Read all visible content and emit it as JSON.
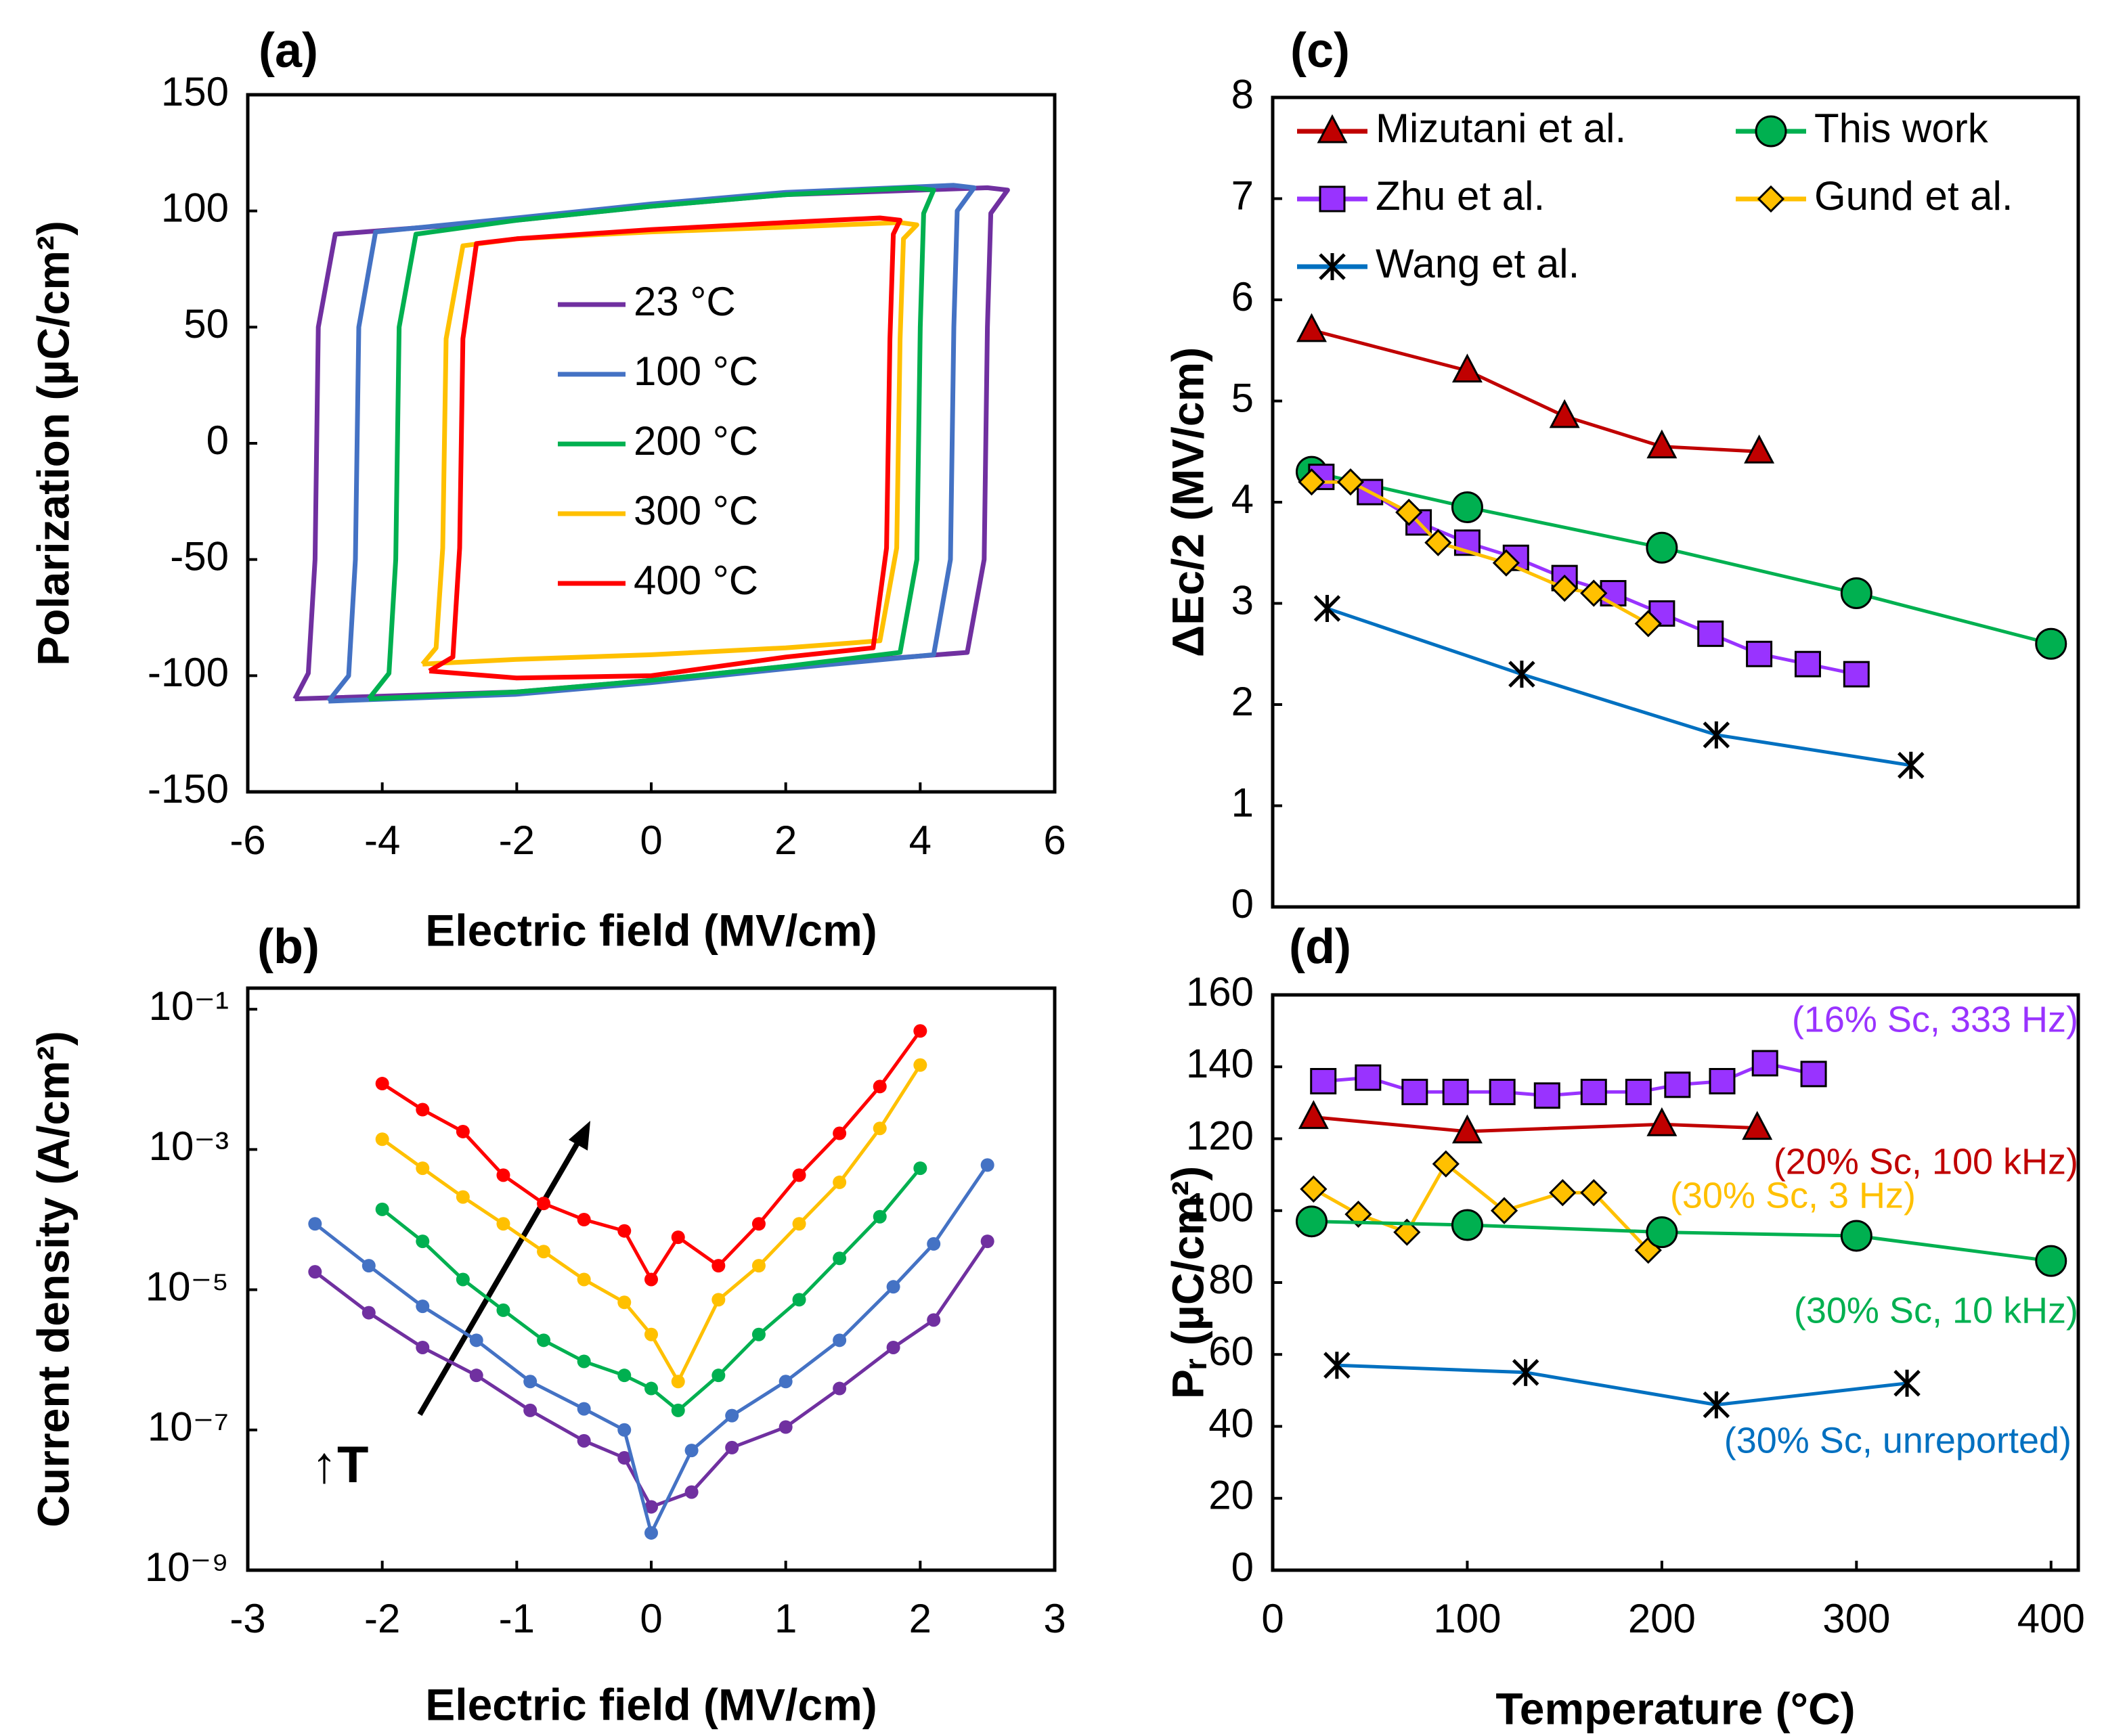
{
  "chart_data": [
    {
      "type": "line",
      "title": "(a)",
      "xlabel": "Electric field (MV/cm)",
      "ylabel": "Polarization (µC/cm²)",
      "xlim": [
        -6,
        6
      ],
      "xticks": [
        -6,
        -4,
        -2,
        0,
        2,
        4,
        6
      ],
      "ylim": [
        -150,
        150
      ],
      "yticks": [
        -150,
        -100,
        -50,
        0,
        50,
        100,
        150
      ],
      "series": [
        {
          "name": "23 °C",
          "color": "#7030a0",
          "x": [
            -5.3,
            -5.1,
            -5.0,
            -4.95,
            -4.7,
            -2,
            0,
            2,
            5.0,
            5.3,
            5.05,
            5.0,
            4.95,
            4.7,
            2,
            0,
            -2,
            -5.3
          ],
          "values": [
            -110,
            -99,
            -50,
            50,
            90,
            96,
            102,
            107,
            110,
            109,
            99,
            50,
            -50,
            -90,
            -96,
            -102,
            -107,
            -110
          ]
        },
        {
          "name": "100 °C",
          "color": "#4472c4",
          "x": [
            -4.8,
            -4.5,
            -4.4,
            -4.35,
            -4.1,
            -2,
            0,
            2,
            4.5,
            4.8,
            4.55,
            4.5,
            4.45,
            4.2,
            2,
            0,
            -2,
            -4.8
          ],
          "values": [
            -111,
            -100,
            -50,
            50,
            91,
            97,
            103,
            108,
            111,
            110,
            100,
            50,
            -50,
            -91,
            -97,
            -103,
            -108,
            -111
          ]
        },
        {
          "name": "200 °C",
          "color": "#00b050",
          "x": [
            -4.2,
            -3.9,
            -3.8,
            -3.75,
            -3.5,
            -2,
            0,
            2,
            3.9,
            4.2,
            4.05,
            4.0,
            3.95,
            3.7,
            2,
            0,
            -2,
            -4.2
          ],
          "values": [
            -110,
            -99,
            -50,
            50,
            90,
            96,
            102,
            107,
            110,
            109,
            99,
            50,
            -50,
            -90,
            -96,
            -102,
            -107,
            -110
          ]
        },
        {
          "name": "300 °C",
          "color": "#ffc000",
          "x": [
            -3.4,
            -3.2,
            -3.1,
            -3.05,
            -2.8,
            -2,
            0,
            2,
            3.7,
            3.95,
            3.75,
            3.7,
            3.65,
            3.4,
            2,
            0,
            -2,
            -3.4
          ],
          "values": [
            -95,
            -88,
            -45,
            45,
            85,
            88,
            91,
            93,
            95,
            94,
            88,
            45,
            -45,
            -85,
            -88,
            -91,
            -93,
            -95
          ]
        },
        {
          "name": "400 °C",
          "color": "#ff0000",
          "x": [
            -3.3,
            -2.95,
            -2.85,
            -2.8,
            -2.6,
            -2,
            0,
            2,
            3.4,
            3.7,
            3.6,
            3.55,
            3.5,
            3.3,
            2,
            0,
            -2,
            -3.3
          ],
          "values": [
            -98,
            -92,
            -45,
            45,
            86,
            88,
            92,
            95,
            97,
            96,
            90,
            45,
            -45,
            -88,
            -92,
            -100,
            -101,
            -98
          ]
        }
      ]
    },
    {
      "type": "line",
      "title": "(b)",
      "xlabel": "Electric field (MV/cm)",
      "ylabel": "Current density (A/cm²)",
      "log_y": true,
      "xlim": [
        -3,
        3
      ],
      "xticks": [
        -3,
        -2,
        -1,
        0,
        1,
        2,
        3
      ],
      "ylim": [
        1e-09,
        0.2
      ],
      "yticks": [
        {
          "value": 1e-09,
          "label": "10⁻⁹"
        },
        {
          "value": 1e-07,
          "label": "10⁻⁷"
        },
        {
          "value": 1e-05,
          "label": "10⁻⁵"
        },
        {
          "value": 0.001,
          "label": "10⁻³"
        },
        {
          "value": 0.1,
          "label": "10⁻¹"
        }
      ],
      "annotations": [
        {
          "text": "↑T"
        }
      ],
      "series": [
        {
          "color": "#7030a0",
          "marker": "dot",
          "x": [
            -2.5,
            -2.1,
            -1.7,
            -1.3,
            -0.9,
            -0.5,
            -0.2,
            0,
            0.3,
            0.6,
            1.0,
            1.4,
            1.8,
            2.1,
            2.5
          ],
          "values": [
            1.8e-05,
            4.7e-06,
            1.5e-06,
            6e-07,
            1.9e-07,
            7e-08,
            4e-08,
            8e-09,
            1.3e-08,
            5.6e-08,
            1.1e-07,
            3.9e-07,
            1.5e-06,
            3.7e-06,
            4.9e-05
          ]
        },
        {
          "color": "#4472c4",
          "marker": "dot",
          "x": [
            -2.5,
            -2.1,
            -1.7,
            -1.3,
            -0.9,
            -0.5,
            -0.2,
            0,
            0.3,
            0.6,
            1.0,
            1.4,
            1.8,
            2.1,
            2.5
          ],
          "values": [
            8.7e-05,
            2.2e-05,
            5.8e-06,
            1.9e-06,
            4.9e-07,
            2e-07,
            1e-07,
            3.4e-09,
            5.1e-08,
            1.6e-07,
            4.9e-07,
            1.9e-06,
            1.1e-05,
            4.5e-05,
            0.0006
          ]
        },
        {
          "color": "#00b050",
          "marker": "dot",
          "x": [
            -2,
            -1.7,
            -1.4,
            -1.1,
            -0.8,
            -0.5,
            -0.2,
            0,
            0.2,
            0.5,
            0.8,
            1.1,
            1.4,
            1.7,
            2
          ],
          "values": [
            0.00014,
            4.9e-05,
            1.4e-05,
            5.1e-06,
            1.9e-06,
            9.5e-07,
            6e-07,
            3.9e-07,
            1.9e-07,
            6e-07,
            2.3e-06,
            7.2e-06,
            2.8e-05,
            0.00011,
            0.00054
          ]
        },
        {
          "color": "#ffc000",
          "marker": "dot",
          "x": [
            -2,
            -1.7,
            -1.4,
            -1.1,
            -0.8,
            -0.5,
            -0.2,
            0,
            0.2,
            0.5,
            0.8,
            1.1,
            1.4,
            1.7,
            2
          ],
          "values": [
            0.0014,
            0.00054,
            0.00021,
            8.7e-05,
            3.5e-05,
            1.4e-05,
            6.6e-06,
            2.3e-06,
            4.9e-07,
            7.2e-06,
            2.2e-05,
            8.7e-05,
            0.00034,
            0.002,
            0.016
          ]
        },
        {
          "color": "#ff0000",
          "marker": "dot",
          "x": [
            -2,
            -1.7,
            -1.4,
            -1.1,
            -0.8,
            -0.5,
            -0.2,
            0,
            0.2,
            0.5,
            0.8,
            1.1,
            1.4,
            1.7,
            2
          ],
          "values": [
            0.0087,
            0.0037,
            0.0018,
            0.00043,
            0.00017,
            0.0001,
            6.9e-05,
            1.4e-05,
            5.6e-05,
            2.2e-05,
            8.7e-05,
            0.00043,
            0.0017,
            0.0079,
            0.049
          ]
        }
      ]
    },
    {
      "type": "line",
      "title": "(c)",
      "ylabel": "ΔEc/2 (MV/cm)",
      "xlim": [
        0,
        414
      ],
      "ylim": [
        0,
        8
      ],
      "yticks": [
        0,
        1,
        2,
        3,
        4,
        5,
        6,
        7,
        8
      ],
      "series": [
        {
          "name": "Mizutani et al.",
          "color": "#c00000",
          "marker": "triangle",
          "x": [
            20,
            100,
            150,
            200,
            250
          ],
          "values": [
            5.7,
            5.3,
            4.85,
            4.55,
            4.5
          ]
        },
        {
          "name": "This work",
          "color": "#00b050",
          "marker": "circle",
          "x": [
            20,
            100,
            200,
            300,
            400
          ],
          "values": [
            4.3,
            3.95,
            3.55,
            3.1,
            2.6
          ]
        },
        {
          "name": "Zhu et al.",
          "color": "#9933ff",
          "marker": "square",
          "x": [
            25,
            50,
            75,
            100,
            125,
            150,
            175,
            200,
            225,
            250,
            275,
            300
          ],
          "values": [
            4.25,
            4.1,
            3.8,
            3.6,
            3.45,
            3.25,
            3.1,
            2.9,
            2.7,
            2.5,
            2.4,
            2.3
          ]
        },
        {
          "name": "Gund et al.",
          "color": "#ffc000",
          "marker": "diamond",
          "x": [
            20,
            40,
            70,
            85,
            120,
            150,
            165,
            193
          ],
          "values": [
            4.2,
            4.2,
            3.9,
            3.6,
            3.4,
            3.15,
            3.1,
            2.8
          ]
        },
        {
          "name": "Wang et al.",
          "color": "#0070c0",
          "marker": "asterisk",
          "x": [
            28,
            128,
            228,
            328
          ],
          "values": [
            2.95,
            2.3,
            1.7,
            1.4
          ]
        }
      ]
    },
    {
      "type": "line",
      "title": "(d)",
      "xlabel": "Temperature (°C)",
      "ylabel": "Pᵣ (µC/cm²)",
      "xlim": [
        0,
        414
      ],
      "xticks": [
        0,
        100,
        200,
        300,
        400
      ],
      "ylim": [
        0,
        160
      ],
      "yticks": [
        0,
        20,
        40,
        60,
        80,
        100,
        120,
        140,
        160
      ],
      "annotations": [
        {
          "text": "(16% Sc, 333 Hz)",
          "color": "#9933ff"
        },
        {
          "text": "(20% Sc, 100 kHz)",
          "color": "#c00000"
        },
        {
          "text": "(30% Sc, 3 Hz)",
          "color": "#ffc000"
        },
        {
          "text": "(30% Sc, 10 kHz)",
          "color": "#00b050"
        },
        {
          "text": "(30% Sc, unreported)",
          "color": "#0070c0"
        }
      ],
      "series": [
        {
          "color": "#9933ff",
          "marker": "square",
          "x": [
            26,
            49,
            73,
            94,
            118,
            141,
            165,
            188,
            208,
            231,
            253,
            278
          ],
          "values": [
            136,
            137,
            133,
            133,
            133,
            132,
            133,
            133,
            135,
            136,
            141,
            138
          ]
        },
        {
          "color": "#c00000",
          "marker": "triangle",
          "x": [
            21,
            100,
            200,
            249
          ],
          "values": [
            126,
            122,
            124,
            123
          ]
        },
        {
          "color": "#ffc000",
          "marker": "diamond",
          "x": [
            21,
            44,
            69,
            89,
            119,
            149,
            165,
            193
          ],
          "values": [
            106,
            99,
            94,
            113,
            100,
            105,
            105,
            89
          ]
        },
        {
          "color": "#00b050",
          "marker": "circle",
          "x": [
            20,
            100,
            200,
            300,
            400
          ],
          "values": [
            97,
            96,
            94,
            93,
            86
          ]
        },
        {
          "color": "#0070c0",
          "marker": "asterisk",
          "x": [
            33,
            130,
            228,
            326
          ],
          "values": [
            57,
            55,
            46,
            52
          ]
        }
      ]
    }
  ]
}
